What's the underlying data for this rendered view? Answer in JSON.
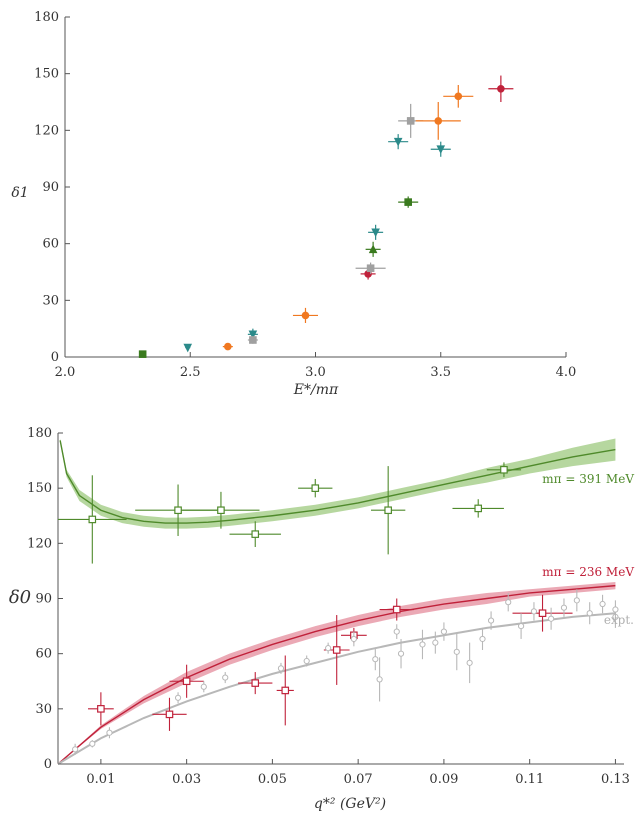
{
  "chart_data": [
    {
      "type": "scatter",
      "xlabel": "E*/mπ",
      "ylabel": "δ1",
      "xlim": [
        2.0,
        4.0
      ],
      "ylim": [
        0,
        180
      ],
      "xticks": [
        "2.0",
        "2.5",
        "3.0",
        "3.5",
        "4.0"
      ],
      "yticks": [
        "0",
        "30",
        "60",
        "90",
        "120",
        "150",
        "180"
      ],
      "grid": false,
      "points": [
        {
          "x": 2.31,
          "y": 1.5,
          "xerr": 0.0,
          "yerr": 0.5,
          "color": "#3a7a1e",
          "marker": "square"
        },
        {
          "x": 2.49,
          "y": 5,
          "xerr": 0.01,
          "yerr": 1.5,
          "color": "#2b8a8a",
          "marker": "triangle-down"
        },
        {
          "x": 2.65,
          "y": 5.5,
          "xerr": 0.02,
          "yerr": 1.5,
          "color": "#f07820",
          "marker": "circle"
        },
        {
          "x": 2.75,
          "y": 12,
          "xerr": 0.02,
          "yerr": 3,
          "color": "#2b8a8a",
          "marker": "triangle-down"
        },
        {
          "x": 2.75,
          "y": 9,
          "xerr": 0.02,
          "yerr": 2,
          "color": "#a0a0a0",
          "marker": "square"
        },
        {
          "x": 2.96,
          "y": 22,
          "xerr": 0.05,
          "yerr": 4,
          "color": "#f07820",
          "marker": "circle"
        },
        {
          "x": 3.21,
          "y": 44,
          "xerr": 0.03,
          "yerr": 3,
          "color": "#c0213a",
          "marker": "circle"
        },
        {
          "x": 3.22,
          "y": 47,
          "xerr": 0.06,
          "yerr": 3,
          "color": "#a0a0a0",
          "marker": "square"
        },
        {
          "x": 3.23,
          "y": 57,
          "xerr": 0.03,
          "yerr": 4,
          "color": "#3a7a1e",
          "marker": "triangle-up"
        },
        {
          "x": 3.24,
          "y": 66,
          "xerr": 0.03,
          "yerr": 4,
          "color": "#2b8a8a",
          "marker": "triangle-down"
        },
        {
          "x": 3.33,
          "y": 114,
          "xerr": 0.04,
          "yerr": 4,
          "color": "#2b8a8a",
          "marker": "triangle-down"
        },
        {
          "x": 3.37,
          "y": 82,
          "xerr": 0.04,
          "yerr": 3,
          "color": "#3a7a1e",
          "marker": "square"
        },
        {
          "x": 3.38,
          "y": 125,
          "xerr": 0.05,
          "yerr": 9,
          "color": "#a0a0a0",
          "marker": "square"
        },
        {
          "x": 3.49,
          "y": 125,
          "xerr": 0.09,
          "yerr": 10,
          "color": "#f07820",
          "marker": "circle"
        },
        {
          "x": 3.5,
          "y": 110,
          "xerr": 0.04,
          "yerr": 4,
          "color": "#2b8a8a",
          "marker": "triangle-down"
        },
        {
          "x": 3.57,
          "y": 138,
          "xerr": 0.06,
          "yerr": 6,
          "color": "#f07820",
          "marker": "circle"
        },
        {
          "x": 3.74,
          "y": 142,
          "xerr": 0.05,
          "yerr": 7,
          "color": "#c0213a",
          "marker": "circle"
        }
      ]
    },
    {
      "type": "scatter",
      "xlabel": "q*² (GeV²)",
      "ylabel": "δ0",
      "xlim": [
        0.0,
        0.132
      ],
      "ylim": [
        0,
        180
      ],
      "xticks": [
        "0.01",
        "0.03",
        "0.05",
        "0.07",
        "0.09",
        "0.11",
        "0.13"
      ],
      "yticks": [
        "0",
        "30",
        "60",
        "90",
        "120",
        "150",
        "180"
      ],
      "grid": false,
      "annotations": [
        "mπ = 391 MeV",
        "mπ = 236 MeV",
        "expt."
      ],
      "series": [
        {
          "name": "mπ = 391 MeV",
          "color": "#4f8a2b",
          "band_color": "#a9d08e",
          "curve": [
            [
              0.0005,
              176
            ],
            [
              0.002,
              158
            ],
            [
              0.005,
              146
            ],
            [
              0.01,
              138
            ],
            [
              0.015,
              134
            ],
            [
              0.02,
              132
            ],
            [
              0.025,
              131
            ],
            [
              0.03,
              131
            ],
            [
              0.035,
              131.5
            ],
            [
              0.04,
              132.5
            ],
            [
              0.05,
              135
            ],
            [
              0.06,
              138
            ],
            [
              0.07,
              142
            ],
            [
              0.08,
              147
            ],
            [
              0.09,
              152
            ],
            [
              0.1,
              157
            ],
            [
              0.11,
              162
            ],
            [
              0.12,
              167
            ],
            [
              0.13,
              171
            ]
          ],
          "band_halfwidth": [
            1,
            2,
            3,
            3,
            3,
            3,
            3,
            3,
            3,
            3,
            3,
            3,
            3,
            3,
            3,
            4,
            4,
            5,
            6
          ],
          "points": [
            {
              "x": 0.008,
              "y": 133,
              "xerr": 0.008,
              "yerr": 24
            },
            {
              "x": 0.028,
              "y": 138,
              "xerr": 0.01,
              "yerr": 14
            },
            {
              "x": 0.038,
              "y": 138,
              "xerr": 0.009,
              "yerr": 10
            },
            {
              "x": 0.046,
              "y": 125,
              "xerr": 0.006,
              "yerr": 7
            },
            {
              "x": 0.06,
              "y": 150,
              "xerr": 0.004,
              "yerr": 5
            },
            {
              "x": 0.077,
              "y": 138,
              "xerr": 0.004,
              "yerr": 24
            },
            {
              "x": 0.098,
              "y": 139,
              "xerr": 0.006,
              "yerr": 5
            },
            {
              "x": 0.104,
              "y": 160,
              "xerr": 0.004,
              "yerr": 4
            }
          ]
        },
        {
          "name": "mπ = 236 MeV",
          "color": "#c0213a",
          "band_color": "#e79aa8",
          "curve": [
            [
              0.0,
              0
            ],
            [
              0.01,
              20
            ],
            [
              0.02,
              35
            ],
            [
              0.03,
              47
            ],
            [
              0.04,
              57
            ],
            [
              0.05,
              65
            ],
            [
              0.06,
              72
            ],
            [
              0.07,
              78
            ],
            [
              0.08,
              83
            ],
            [
              0.09,
              87
            ],
            [
              0.1,
              90
            ],
            [
              0.11,
              93
            ],
            [
              0.12,
              95
            ],
            [
              0.13,
              97
            ]
          ],
          "band_halfwidth": [
            0,
            1,
            2,
            3,
            3,
            3,
            3,
            3,
            3,
            3,
            3,
            2,
            2,
            2
          ],
          "points": [
            {
              "x": 0.01,
              "y": 30,
              "xerr": 0.003,
              "yerr": 9
            },
            {
              "x": 0.026,
              "y": 27,
              "xerr": 0.004,
              "yerr": 9
            },
            {
              "x": 0.03,
              "y": 45,
              "xerr": 0.004,
              "yerr": 9
            },
            {
              "x": 0.046,
              "y": 44,
              "xerr": 0.004,
              "yerr": 6
            },
            {
              "x": 0.053,
              "y": 40,
              "xerr": 0.002,
              "yerr": 19
            },
            {
              "x": 0.065,
              "y": 62,
              "xerr": 0.003,
              "yerr": 19
            },
            {
              "x": 0.069,
              "y": 70,
              "xerr": 0.003,
              "yerr": 4
            },
            {
              "x": 0.079,
              "y": 84,
              "xerr": 0.004,
              "yerr": 6
            },
            {
              "x": 0.113,
              "y": 82,
              "xerr": 0.007,
              "yerr": 10
            }
          ]
        },
        {
          "name": "expt.",
          "color": "#b8b8b8",
          "curve": [
            [
              0.0,
              0
            ],
            [
              0.01,
              14
            ],
            [
              0.02,
              25
            ],
            [
              0.03,
              34
            ],
            [
              0.04,
              42
            ],
            [
              0.05,
              49
            ],
            [
              0.06,
              55
            ],
            [
              0.07,
              61
            ],
            [
              0.08,
              66
            ],
            [
              0.09,
              70
            ],
            [
              0.1,
              74
            ],
            [
              0.11,
              77
            ],
            [
              0.12,
              80
            ],
            [
              0.13,
              82
            ]
          ],
          "points": [
            {
              "x": 0.004,
              "y": 8,
              "yerr": 3
            },
            {
              "x": 0.008,
              "y": 11,
              "yerr": 2
            },
            {
              "x": 0.012,
              "y": 17,
              "yerr": 3
            },
            {
              "x": 0.028,
              "y": 36,
              "yerr": 3
            },
            {
              "x": 0.034,
              "y": 42,
              "yerr": 3
            },
            {
              "x": 0.039,
              "y": 47,
              "yerr": 3
            },
            {
              "x": 0.052,
              "y": 52,
              "yerr": 3
            },
            {
              "x": 0.058,
              "y": 56,
              "yerr": 3
            },
            {
              "x": 0.063,
              "y": 63,
              "yerr": 3
            },
            {
              "x": 0.069,
              "y": 68,
              "yerr": 4
            },
            {
              "x": 0.074,
              "y": 57,
              "yerr": 6
            },
            {
              "x": 0.075,
              "y": 46,
              "yerr": 12
            },
            {
              "x": 0.079,
              "y": 72,
              "yerr": 4
            },
            {
              "x": 0.08,
              "y": 60,
              "yerr": 8
            },
            {
              "x": 0.085,
              "y": 65,
              "yerr": 8
            },
            {
              "x": 0.088,
              "y": 66,
              "yerr": 6
            },
            {
              "x": 0.09,
              "y": 72,
              "yerr": 5
            },
            {
              "x": 0.093,
              "y": 61,
              "yerr": 10
            },
            {
              "x": 0.096,
              "y": 55,
              "yerr": 11
            },
            {
              "x": 0.099,
              "y": 68,
              "yerr": 6
            },
            {
              "x": 0.101,
              "y": 78,
              "yerr": 5
            },
            {
              "x": 0.105,
              "y": 88,
              "yerr": 5
            },
            {
              "x": 0.108,
              "y": 75,
              "yerr": 7
            },
            {
              "x": 0.111,
              "y": 83,
              "yerr": 5
            },
            {
              "x": 0.115,
              "y": 79,
              "yerr": 6
            },
            {
              "x": 0.118,
              "y": 85,
              "yerr": 5
            },
            {
              "x": 0.121,
              "y": 89,
              "yerr": 6
            },
            {
              "x": 0.124,
              "y": 82,
              "yerr": 6
            },
            {
              "x": 0.127,
              "y": 87,
              "yerr": 5
            },
            {
              "x": 0.13,
              "y": 80,
              "yerr": 6
            },
            {
              "x": 0.13,
              "y": 84,
              "yerr": 5
            }
          ]
        }
      ]
    }
  ]
}
